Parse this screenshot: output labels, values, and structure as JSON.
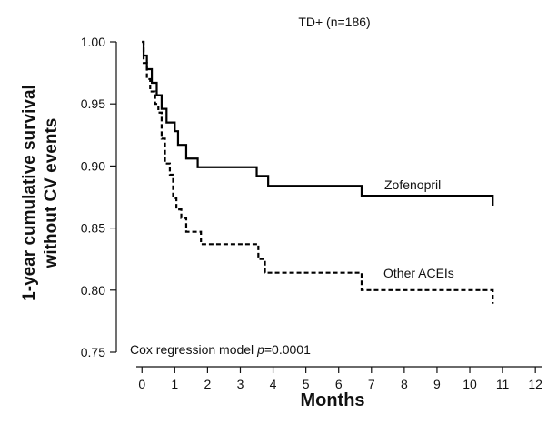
{
  "chart_data": {
    "type": "line",
    "title": "TD+ (n=186)",
    "xlabel": "Months",
    "ylabel_line1": "1-year cumulative survival",
    "ylabel_line2": "without CV events",
    "xlim": [
      -0.7,
      12.3
    ],
    "ylim": [
      0.75,
      1.0
    ],
    "x_ticks": [
      "0",
      "1",
      "2",
      "3",
      "4",
      "5",
      "6",
      "7",
      "8",
      "9",
      "10",
      "11",
      "12"
    ],
    "y_ticks": [
      "0.75",
      "0.80",
      "0.85",
      "0.90",
      "0.95",
      "1.00"
    ],
    "annotation_prefix": "Cox regression model ",
    "annotation_p": "p",
    "annotation_value": "=0.0001",
    "grid": false,
    "series": [
      {
        "name": "Zofenopril",
        "style": "solid",
        "color": "#000000",
        "points": [
          [
            0.0,
            1.0
          ],
          [
            0.05,
            0.989
          ],
          [
            0.15,
            0.978
          ],
          [
            0.3,
            0.967
          ],
          [
            0.45,
            0.957
          ],
          [
            0.6,
            0.946
          ],
          [
            0.75,
            0.935
          ],
          [
            1.0,
            0.928
          ],
          [
            1.1,
            0.917
          ],
          [
            1.35,
            0.906
          ],
          [
            1.7,
            0.899
          ],
          [
            3.5,
            0.892
          ],
          [
            3.85,
            0.884
          ],
          [
            6.7,
            0.876
          ],
          [
            10.7,
            0.868
          ]
        ]
      },
      {
        "name": "Other ACEIs",
        "style": "dashed",
        "color": "#000000",
        "points": [
          [
            0.0,
            1.0
          ],
          [
            0.05,
            0.983
          ],
          [
            0.15,
            0.97
          ],
          [
            0.25,
            0.96
          ],
          [
            0.4,
            0.95
          ],
          [
            0.5,
            0.943
          ],
          [
            0.6,
            0.922
          ],
          [
            0.7,
            0.902
          ],
          [
            0.85,
            0.893
          ],
          [
            0.95,
            0.874
          ],
          [
            1.05,
            0.865
          ],
          [
            1.2,
            0.858
          ],
          [
            1.35,
            0.847
          ],
          [
            1.8,
            0.837
          ],
          [
            3.55,
            0.825
          ],
          [
            3.75,
            0.814
          ],
          [
            6.7,
            0.8
          ],
          [
            10.7,
            0.789
          ]
        ]
      }
    ]
  }
}
